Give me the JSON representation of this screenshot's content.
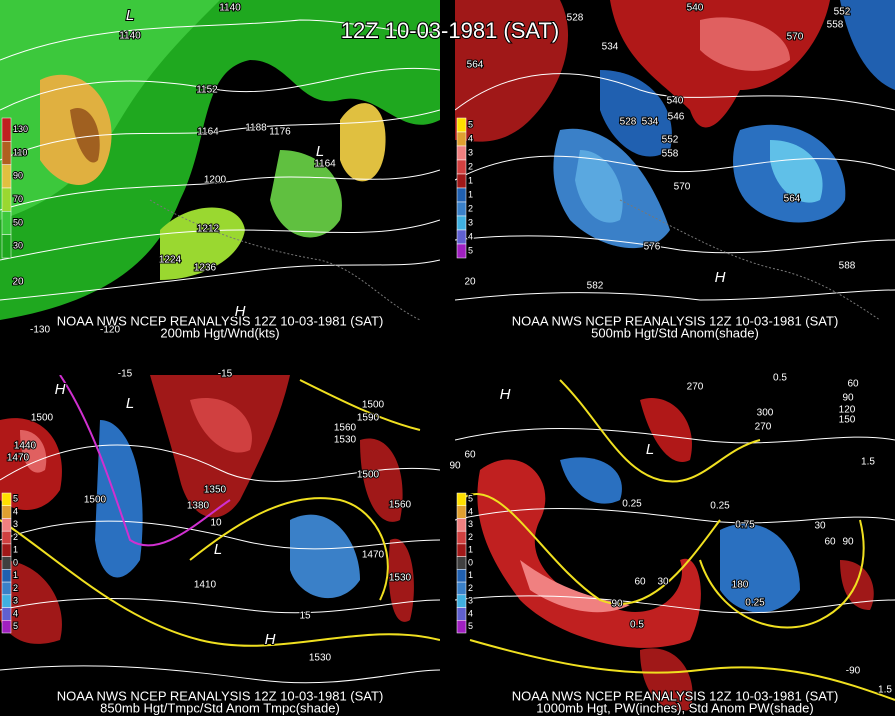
{
  "title": "12Z 10-03-1981 (SAT)",
  "panels": [
    {
      "caption_1": "NOAA NWS NCEP REANALYSIS 12Z 10-03-1981 (SAT)",
      "caption_2": "200mb Hgt/Wnd(kts)",
      "legend": [
        "130",
        "110",
        "90",
        "70",
        "50",
        "30"
      ],
      "labels": [
        "1140",
        "1140",
        "1152",
        "1164",
        "1188",
        "1176",
        "1164",
        "1200",
        "1212",
        "1224",
        "1236",
        "H",
        "L",
        "L",
        "-130",
        "-120",
        "20"
      ]
    },
    {
      "caption_1": "NOAA NWS NCEP REANALYSIS 12Z 10-03-1981 (SAT)",
      "caption_2": "500mb Hgt/Std Anom(shade)",
      "legend": [
        "5",
        "4",
        "3",
        "2",
        "1",
        "1",
        "2",
        "3",
        "4",
        "5"
      ],
      "labels": [
        "528",
        "540",
        "552",
        "558",
        "534",
        "570",
        "564",
        "540",
        "546",
        "552",
        "528",
        "534",
        "558",
        "570",
        "564",
        "576",
        "582",
        "588",
        "20",
        "H"
      ]
    },
    {
      "caption_1": "NOAA NWS NCEP REANALYSIS 12Z 10-03-1981 (SAT)",
      "caption_2": "850mb Hgt/Tmpc/Std Anom Tmpc(shade)",
      "legend": [
        "5",
        "4",
        "3",
        "2",
        "1",
        "0",
        "1",
        "2",
        "3",
        "4",
        "5"
      ],
      "labels": [
        "1500",
        "1440",
        "1470",
        "1500",
        "1380",
        "1350",
        "1410",
        "1560",
        "1530",
        "1590",
        "1500",
        "1500",
        "1560",
        "1470",
        "1530",
        "1530",
        "-15",
        "-15",
        "10",
        "15",
        "H",
        "H",
        "L",
        "L"
      ]
    },
    {
      "caption_1": "NOAA NWS NCEP REANALYSIS 12Z 10-03-1981 (SAT)",
      "caption_2": "1000mb Hgt, PW(inches), Std Anom PW(shade)",
      "legend": [
        "5",
        "4",
        "3",
        "2",
        "1",
        "0",
        "1",
        "2",
        "3",
        "4",
        "5"
      ],
      "labels": [
        "270",
        "300",
        "270",
        "0.5",
        "60",
        "90",
        "120",
        "150",
        "1.5",
        "60",
        "90",
        "0.25",
        "0.75",
        "0.25",
        "30",
        "60",
        "90",
        "180",
        "0.25",
        "0.5",
        "60",
        "30",
        "90",
        "-90",
        "1.5",
        "H",
        "L"
      ]
    }
  ]
}
